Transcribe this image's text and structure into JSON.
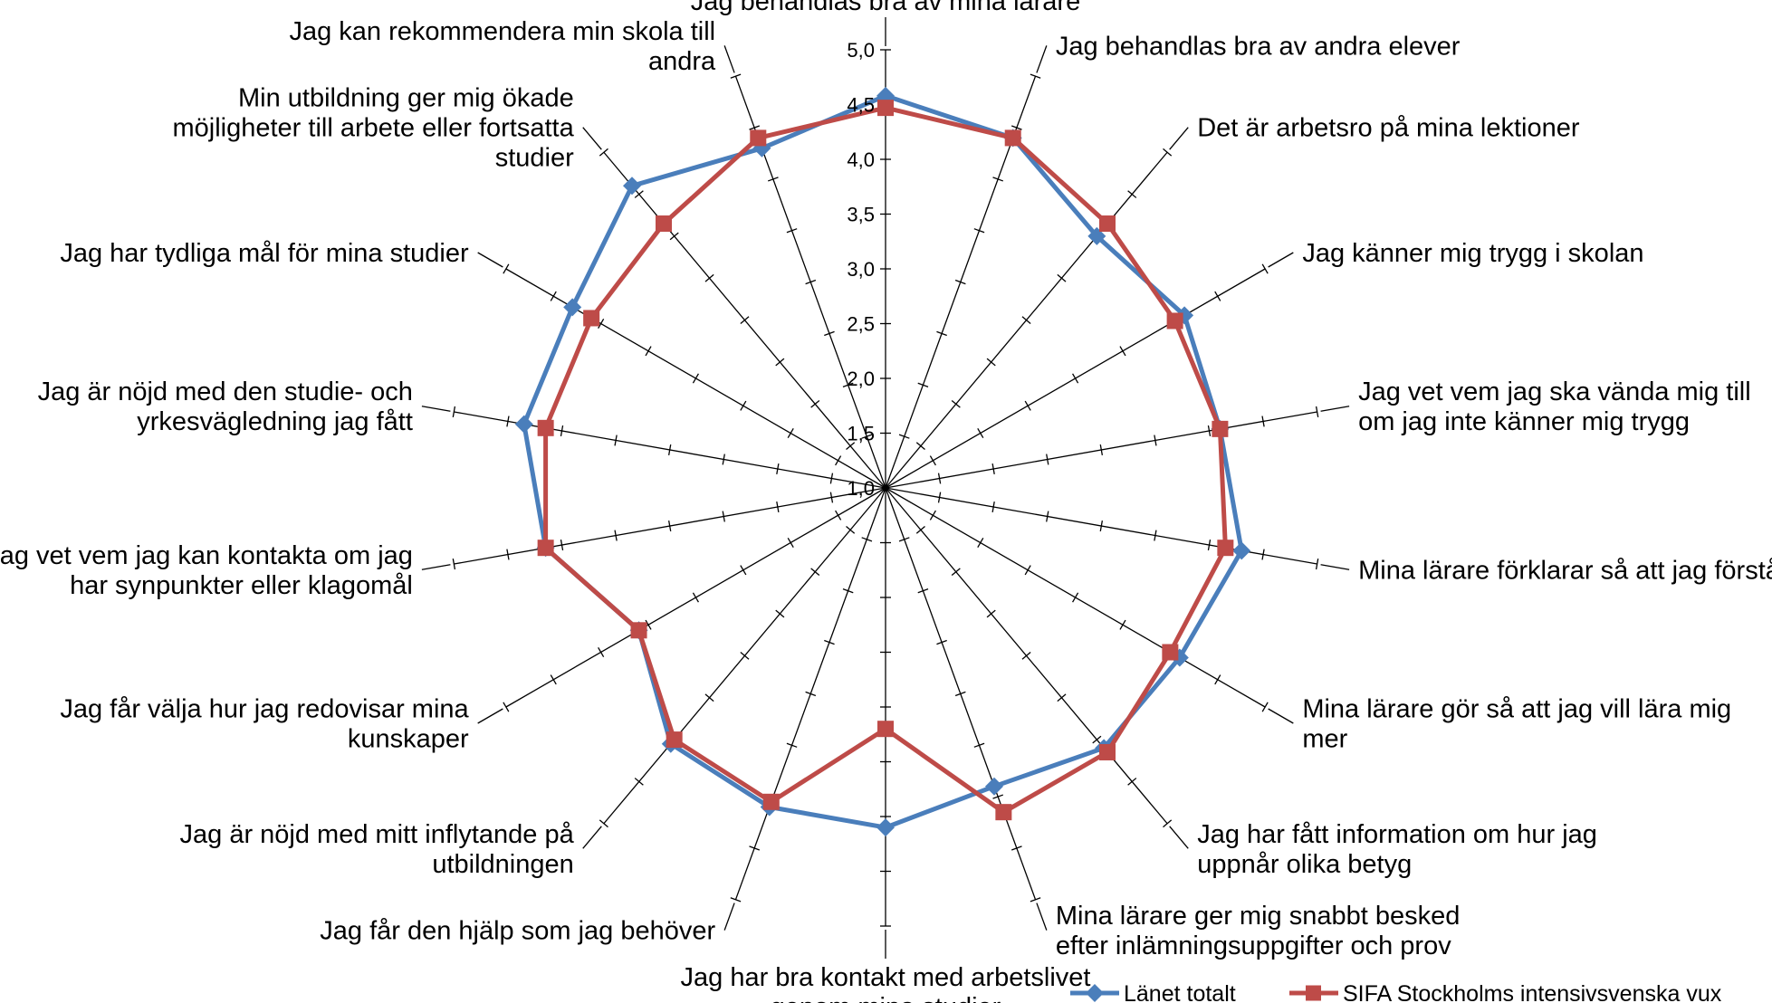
{
  "chart_data": {
    "type": "radar",
    "rlim": [
      1.0,
      5.0
    ],
    "tick_labels": [
      "1,0",
      "1,5",
      "2,0",
      "2,5",
      "3,0",
      "3,5",
      "4,0",
      "4,5",
      "5,0"
    ],
    "tick_values": [
      1.0,
      1.5,
      2.0,
      2.5,
      3.0,
      3.5,
      4.0,
      4.5,
      5.0
    ],
    "categories": [
      [
        "Jag behandlas bra av mina lärare"
      ],
      [
        "Jag behandlas bra av andra elever"
      ],
      [
        "Det är arbetsro på mina lektioner"
      ],
      [
        "Jag känner mig trygg i skolan"
      ],
      [
        "Jag vet vem jag ska vända mig till",
        "om jag inte känner mig trygg"
      ],
      [
        "Mina lärare förklarar så att jag förstår"
      ],
      [
        "Mina lärare gör så att jag vill lära mig",
        "mer"
      ],
      [
        "Jag har fått information om hur jag",
        "uppnår olika betyg"
      ],
      [
        "Mina lärare ger mig snabbt besked",
        "efter inlämningsuppgifter och prov"
      ],
      [
        "Jag har bra kontakt med arbetslivet",
        "genom mina studier"
      ],
      [
        "Jag får den hjälp som jag behöver"
      ],
      [
        "Jag är nöjd med mitt inflytande på",
        "utbildningen"
      ],
      [
        "Jag får välja hur jag redovisar mina",
        "kunskaper"
      ],
      [
        "Jag vet vem jag kan kontakta om jag",
        "har synpunkter eller klagomål"
      ],
      [
        "Jag är nöjd med den studie- och",
        "yrkesvägledning jag fått"
      ],
      [
        "Jag har tydliga mål för mina studier"
      ],
      [
        "Min utbildning ger mig ökade",
        "möjligheter till arbete eller fortsatta",
        "studier"
      ],
      [
        "Jag kan rekommendera min skola till",
        "andra"
      ]
    ],
    "series": [
      {
        "name": "Länet totalt",
        "color": "#4a7ebb",
        "marker": "diamond",
        "values": [
          4.58,
          4.4,
          4.0,
          4.15,
          4.1,
          4.3,
          4.1,
          4.1,
          3.9,
          4.1,
          4.1,
          4.05,
          3.6,
          4.15,
          4.35,
          4.3,
          4.6,
          4.3
        ]
      },
      {
        "name": "SIFA Stockholms intensivsvenska vux",
        "color": "#be4b48",
        "marker": "square",
        "values": [
          4.47,
          4.4,
          4.15,
          4.05,
          4.1,
          4.15,
          4.0,
          4.15,
          4.15,
          3.2,
          4.05,
          4.0,
          3.6,
          4.15,
          4.15,
          4.1,
          4.15,
          4.4
        ]
      }
    ]
  }
}
